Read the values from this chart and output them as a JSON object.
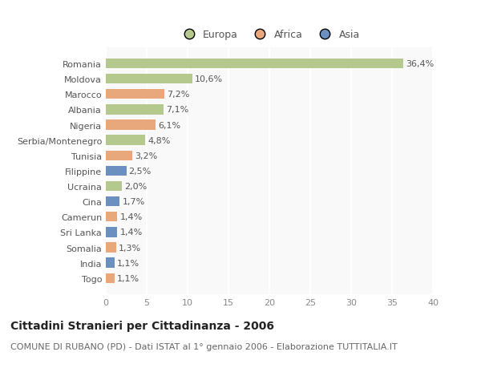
{
  "countries": [
    "Romania",
    "Moldova",
    "Marocco",
    "Albania",
    "Nigeria",
    "Serbia/Montenegro",
    "Tunisia",
    "Filippine",
    "Ucraina",
    "Cina",
    "Camerun",
    "Sri Lanka",
    "Somalia",
    "India",
    "Togo"
  ],
  "values": [
    36.4,
    10.6,
    7.2,
    7.1,
    6.1,
    4.8,
    3.2,
    2.5,
    2.0,
    1.7,
    1.4,
    1.4,
    1.3,
    1.1,
    1.1
  ],
  "labels": [
    "36,4%",
    "10,6%",
    "7,2%",
    "7,1%",
    "6,1%",
    "4,8%",
    "3,2%",
    "2,5%",
    "2,0%",
    "1,7%",
    "1,4%",
    "1,4%",
    "1,3%",
    "1,1%",
    "1,1%"
  ],
  "continents": [
    "Europa",
    "Europa",
    "Africa",
    "Europa",
    "Africa",
    "Europa",
    "Africa",
    "Asia",
    "Europa",
    "Asia",
    "Africa",
    "Asia",
    "Africa",
    "Asia",
    "Africa"
  ],
  "colors": {
    "Europa": "#b5c98e",
    "Africa": "#e8a87c",
    "Asia": "#6b8fbf"
  },
  "xlim": [
    0,
    40
  ],
  "xticks": [
    0,
    5,
    10,
    15,
    20,
    25,
    30,
    35,
    40
  ],
  "title": "Cittadini Stranieri per Cittadinanza - 2006",
  "subtitle": "COMUNE DI RUBANO (PD) - Dati ISTAT al 1° gennaio 2006 - Elaborazione TUTTITALIA.IT",
  "bg_color": "#ffffff",
  "plot_bg_color": "#f9f9f9",
  "grid_color": "#ffffff",
  "bar_height": 0.65,
  "title_fontsize": 10,
  "subtitle_fontsize": 8,
  "tick_fontsize": 8,
  "label_fontsize": 8,
  "legend_fontsize": 9
}
